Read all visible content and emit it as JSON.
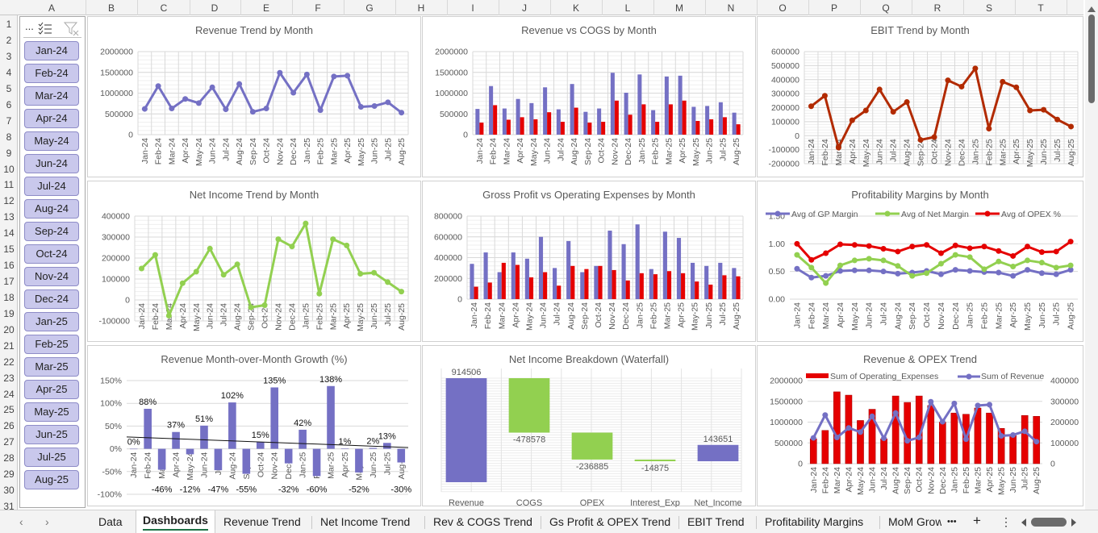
{
  "column_headers": [
    "A",
    "B",
    "C",
    "D",
    "E",
    "F",
    "G",
    "H",
    "I",
    "J",
    "K",
    "L",
    "M",
    "N",
    "O",
    "P",
    "Q",
    "R",
    "S",
    "T"
  ],
  "row_headers": [
    "1",
    "2",
    "3",
    "4",
    "5",
    "6",
    "7",
    "8",
    "9",
    "10",
    "11",
    "12",
    "13",
    "14",
    "15",
    "16",
    "17",
    "18",
    "19",
    "20",
    "21",
    "22",
    "23",
    "24",
    "25",
    "26",
    "27",
    "28",
    "29",
    "30",
    "31"
  ],
  "slicer": {
    "icons": [
      "more-options-icon",
      "multi-select-icon",
      "clear-filter-icon"
    ],
    "more_label": "...",
    "items": [
      "Jan-24",
      "Feb-24",
      "Mar-24",
      "Apr-24",
      "May-24",
      "Jun-24",
      "Jul-24",
      "Aug-24",
      "Sep-24",
      "Oct-24",
      "Nov-24",
      "Dec-24",
      "Jan-25",
      "Feb-25",
      "Mar-25",
      "Apr-25",
      "May-25",
      "Jun-25",
      "Jul-25",
      "Aug-25"
    ]
  },
  "sheet_tabs": {
    "tabs": [
      "Data",
      "Dashboards",
      "Revenue Trend",
      "Net Income Trend",
      "Rev & COGS Trend",
      "Gs Profit & OPEX Trend",
      "EBIT Trend",
      "Profitability Margins",
      "MoM Growth"
    ],
    "active": "Dashboards",
    "more": "•••",
    "add": "+",
    "menu": "⋮",
    "prev": "‹",
    "next": "›"
  },
  "colors": {
    "revenue": "#7470c4",
    "red": "#e50000",
    "green": "#92d050",
    "ebit": "#b22a00",
    "accent": "#1e7145"
  },
  "chart_data": [
    {
      "type": "line",
      "title": "Revenue Trend by Month",
      "categories": [
        "Jan-24",
        "Feb-24",
        "Mar-24",
        "Apr-24",
        "May-24",
        "Jun-24",
        "Jul-24",
        "Aug-24",
        "Sep-24",
        "Oct-24",
        "Nov-24",
        "Dec-24",
        "Jan-25",
        "Feb-25",
        "Mar-25",
        "Apr-25",
        "May-25",
        "Jun-25",
        "Jul-25",
        "Aug-25"
      ],
      "series": [
        {
          "values": [
            620000,
            1170000,
            630000,
            860000,
            760000,
            1140000,
            610000,
            1220000,
            550000,
            630000,
            1490000,
            1010000,
            1450000,
            590000,
            1400000,
            1420000,
            670000,
            690000,
            780000,
            530000
          ],
          "color": "#7470c4"
        }
      ],
      "ylim": [
        0,
        2000000
      ],
      "y_ticks": [
        0,
        500000,
        1000000,
        1500000,
        2000000
      ],
      "grid": true
    },
    {
      "type": "bar",
      "title": "Revenue vs COGS by Month",
      "categories": [
        "Jan-24",
        "Feb-24",
        "Mar-24",
        "Apr-24",
        "May-24",
        "Jun-24",
        "Jul-24",
        "Aug-24",
        "Sep-24",
        "Oct-24",
        "Nov-24",
        "Dec-24",
        "Jan-25",
        "Feb-25",
        "Mar-25",
        "Apr-25",
        "May-25",
        "Jun-25",
        "Jul-25",
        "Aug-25"
      ],
      "series": [
        {
          "values": [
            620000,
            1170000,
            630000,
            860000,
            760000,
            1140000,
            610000,
            1220000,
            550000,
            630000,
            1490000,
            1010000,
            1450000,
            590000,
            1400000,
            1420000,
            670000,
            690000,
            780000,
            530000
          ],
          "color": "#7470c4"
        },
        {
          "values": [
            290000,
            710000,
            360000,
            420000,
            370000,
            540000,
            310000,
            650000,
            290000,
            310000,
            820000,
            480000,
            730000,
            310000,
            730000,
            820000,
            330000,
            370000,
            420000,
            250000
          ],
          "color": "#e50000"
        }
      ],
      "ylim": [
        0,
        2000000
      ],
      "y_ticks": [
        0,
        500000,
        1000000,
        1500000,
        2000000
      ],
      "grid": true
    },
    {
      "type": "line",
      "title": "EBIT Trend by Month",
      "categories": [
        "Jan-24",
        "Feb-24",
        "Mar-24",
        "Apr-24",
        "May-24",
        "Jun-24",
        "Jul-24",
        "Aug-24",
        "Sep-24",
        "Oct-24",
        "Nov-24",
        "Dec-24",
        "Jan-25",
        "Feb-25",
        "Mar-25",
        "Apr-25",
        "May-25",
        "Jun-25",
        "Jul-25",
        "Aug-25"
      ],
      "series": [
        {
          "values": [
            210000,
            285000,
            -85000,
            110000,
            180000,
            330000,
            170000,
            240000,
            -30000,
            -10000,
            395000,
            350000,
            480000,
            50000,
            385000,
            345000,
            180000,
            185000,
            115000,
            65000
          ],
          "color": "#b22a00"
        }
      ],
      "ylim": [
        -200000,
        600000
      ],
      "y_ticks": [
        -200000,
        -100000,
        0,
        100000,
        200000,
        300000,
        400000,
        500000,
        600000
      ],
      "grid": true
    },
    {
      "type": "line",
      "title": "Net Income Trend by Month",
      "categories": [
        "Jan-24",
        "Feb-24",
        "Mar-24",
        "Apr-24",
        "May-24",
        "Jun-24",
        "Jul-24",
        "Aug-24",
        "Sep-24",
        "Oct-24",
        "Nov-24",
        "Dec-24",
        "Jan-25",
        "Feb-25",
        "Mar-25",
        "Apr-25",
        "May-25",
        "Jun-25",
        "Jul-25",
        "Aug-25"
      ],
      "series": [
        {
          "values": [
            150000,
            215000,
            -75000,
            80000,
            135000,
            245000,
            120000,
            170000,
            -35000,
            -25000,
            290000,
            255000,
            365000,
            30000,
            290000,
            260000,
            125000,
            130000,
            85000,
            40000
          ],
          "color": "#92d050"
        }
      ],
      "ylim": [
        -100000,
        400000
      ],
      "y_ticks": [
        -100000,
        0,
        100000,
        200000,
        300000,
        400000
      ],
      "grid": true
    },
    {
      "type": "bar",
      "title": "Gross Profit vs Operating Expenses by Month",
      "categories": [
        "Jan-24",
        "Feb-24",
        "Mar-24",
        "Apr-24",
        "May-24",
        "Jun-24",
        "Jul-24",
        "Aug-24",
        "Sep-24",
        "Oct-24",
        "Nov-24",
        "Dec-24",
        "Jan-25",
        "Feb-25",
        "Mar-25",
        "Apr-25",
        "May-25",
        "Jun-25",
        "Jul-25",
        "Aug-25"
      ],
      "series": [
        {
          "values": [
            340000,
            450000,
            260000,
            450000,
            390000,
            600000,
            300000,
            560000,
            260000,
            320000,
            660000,
            530000,
            720000,
            290000,
            650000,
            590000,
            350000,
            320000,
            350000,
            300000
          ],
          "color": "#7470c4"
        },
        {
          "values": [
            120000,
            160000,
            350000,
            330000,
            210000,
            260000,
            130000,
            320000,
            290000,
            320000,
            280000,
            180000,
            250000,
            240000,
            270000,
            250000,
            170000,
            140000,
            230000,
            220000
          ],
          "color": "#e50000"
        }
      ],
      "ylim": [
        0,
        800000
      ],
      "y_ticks": [
        0,
        200000,
        400000,
        600000,
        800000
      ],
      "grid": true
    },
    {
      "type": "line",
      "title": "Profitability Margins by Month",
      "categories": [
        "Jan-24",
        "Feb-24",
        "Mar-24",
        "Apr-24",
        "May-24",
        "Jun-24",
        "Jul-24",
        "Aug-24",
        "Sep-24",
        "Oct-24",
        "Nov-24",
        "Dec-24",
        "Jan-25",
        "Feb-25",
        "Mar-25",
        "Apr-25",
        "May-25",
        "Jun-25",
        "Jul-25",
        "Aug-25"
      ],
      "series": [
        {
          "name": "Avg of GP Margin",
          "values": [
            0.55,
            0.39,
            0.42,
            0.51,
            0.52,
            0.52,
            0.5,
            0.46,
            0.48,
            0.51,
            0.45,
            0.53,
            0.51,
            0.49,
            0.48,
            0.42,
            0.53,
            0.47,
            0.45,
            0.53
          ],
          "color": "#7470c4"
        },
        {
          "name": "Avg of Net Margin",
          "values": [
            0.8,
            0.57,
            0.29,
            0.61,
            0.7,
            0.73,
            0.7,
            0.6,
            0.42,
            0.47,
            0.64,
            0.8,
            0.76,
            0.54,
            0.68,
            0.59,
            0.7,
            0.66,
            0.57,
            0.61
          ],
          "color": "#92d050"
        },
        {
          "name": "Avg of OPEX %",
          "values": [
            1.0,
            0.71,
            0.83,
            0.99,
            0.98,
            0.96,
            0.91,
            0.86,
            0.95,
            0.98,
            0.83,
            0.97,
            0.92,
            0.95,
            0.87,
            0.78,
            0.95,
            0.85,
            0.86,
            1.04
          ],
          "color": "#e50000"
        }
      ],
      "ylim": [
        0,
        1.5
      ],
      "y_ticks": [
        0,
        0.5,
        1,
        1.5
      ],
      "y_format": "2dp",
      "grid": false,
      "legend": "top"
    },
    {
      "type": "bar",
      "title": "Revenue Month-over-Month Growth (%)",
      "categories": [
        "Jan-24",
        "Feb-24",
        "Mar-24",
        "Apr-24",
        "May-24",
        "Jun-24",
        "Jul-24",
        "Aug-24",
        "Sep-24",
        "Oct-24",
        "Nov-24",
        "Dec-24",
        "Jan-25",
        "Feb-25",
        "Mar-25",
        "Apr-25",
        "May-25",
        "Jun-25",
        "Jul-25",
        "Aug-25"
      ],
      "series": [
        {
          "values": [
            0,
            88,
            -46,
            37,
            -12,
            51,
            -47,
            102,
            -55,
            15,
            135,
            -32,
            42,
            -60,
            138,
            1,
            -52,
            2,
            13,
            -30
          ],
          "color": "#7470c4"
        }
      ],
      "ylim": [
        -100,
        150
      ],
      "y_ticks": [
        -100,
        -50,
        0,
        50,
        100,
        150
      ],
      "y_format": "percent",
      "data_labels": true,
      "trendline": "linear",
      "grid": false
    },
    {
      "type": "waterfall",
      "title": "Net Income Breakdown (Waterfall)",
      "categories": [
        "Revenue",
        "COGS",
        "OPEX",
        "Interest_Exp",
        "Net_Income"
      ],
      "values": [
        914506,
        -478578,
        -236885,
        -14875,
        143651
      ],
      "colors": {
        "increase": "#7470c4",
        "decrease": "#92d050"
      }
    },
    {
      "type": "combo",
      "title": "Revenue & OPEX Trend",
      "categories": [
        "Jan-24",
        "Feb-24",
        "Mar-24",
        "Apr-24",
        "May-24",
        "Jun-24",
        "Jul-24",
        "Aug-24",
        "Sep-24",
        "Oct-24",
        "Nov-24",
        "Dec-24",
        "Jan-25",
        "Feb-25",
        "Mar-25",
        "Apr-25",
        "May-25",
        "Jun-25",
        "Jul-25",
        "Aug-25"
      ],
      "series": [
        {
          "name": "Sum of Operating_Expenses",
          "kind": "bar",
          "axis": "secondary",
          "values": [
            120000,
            160000,
            346000,
            330000,
            208000,
            262000,
            120000,
            326000,
            295000,
            326000,
            280000,
            200000,
            244000,
            238000,
            268000,
            244000,
            170000,
            135000,
            232000,
            228000
          ],
          "color": "#e50000"
        },
        {
          "name": "Sum of Revenue",
          "kind": "line",
          "axis": "primary",
          "values": [
            620000,
            1170000,
            630000,
            860000,
            760000,
            1140000,
            610000,
            1220000,
            550000,
            630000,
            1490000,
            1010000,
            1450000,
            590000,
            1400000,
            1420000,
            670000,
            690000,
            780000,
            530000
          ],
          "color": "#7470c4"
        }
      ],
      "ylim": [
        0,
        2000000
      ],
      "y_ticks": [
        0,
        500000,
        1000000,
        1500000,
        2000000
      ],
      "y2lim": [
        0,
        400000
      ],
      "y2_ticks": [
        0,
        100000,
        200000,
        300000,
        400000
      ],
      "legend": "top",
      "grid": false
    }
  ]
}
